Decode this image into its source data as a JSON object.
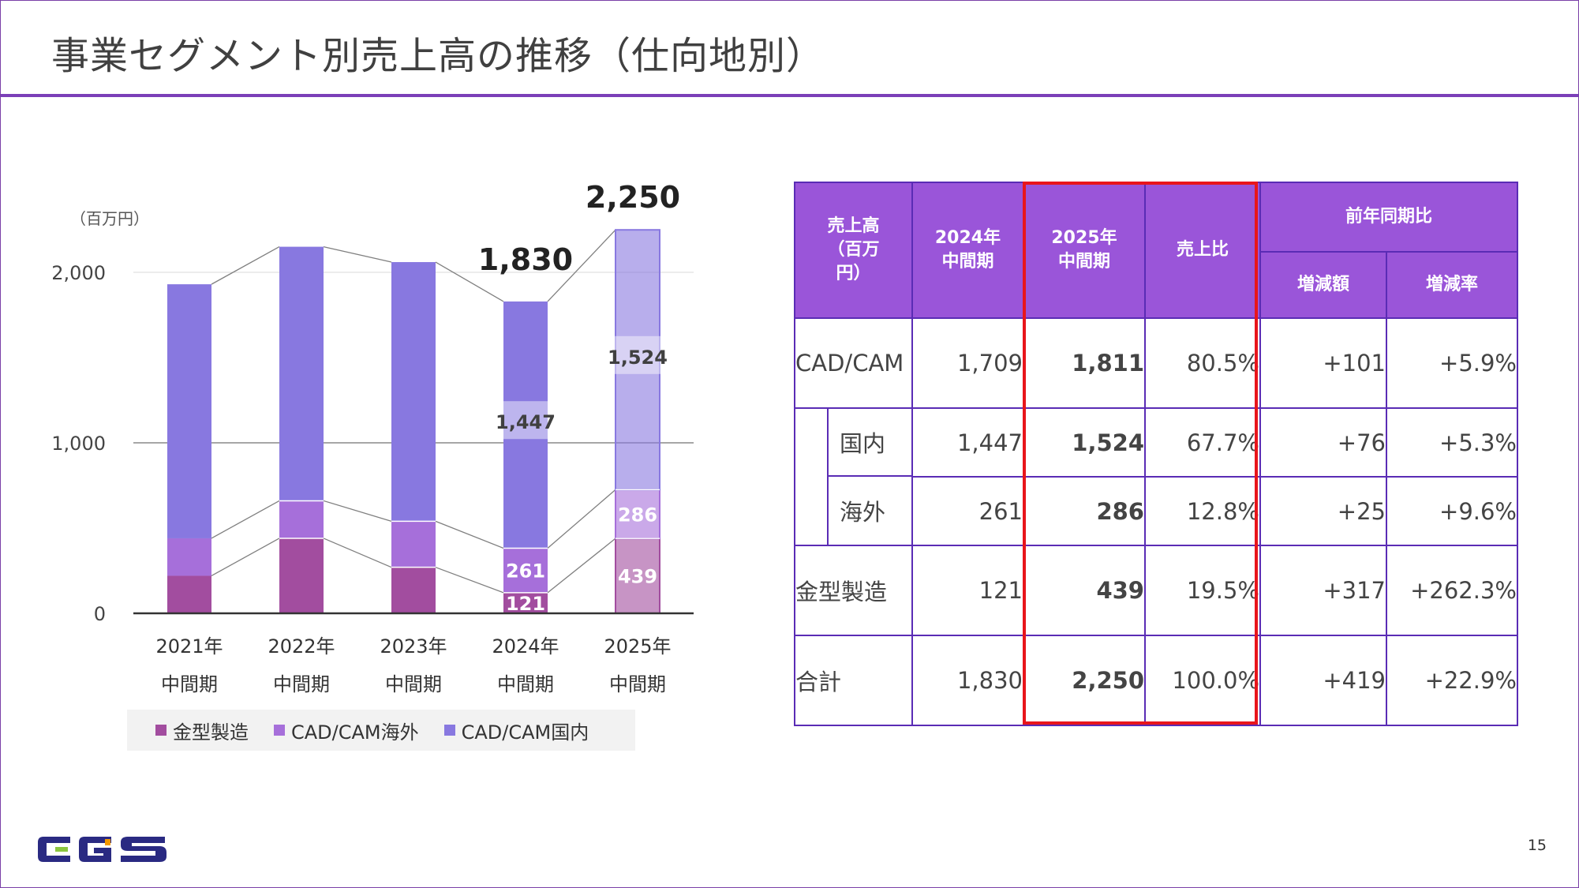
{
  "title": "事業セグメント別売上高の推移（仕向地別）",
  "page_number": "15",
  "logo_text": "CGS",
  "colors": {
    "kanagata": "#a24d9f",
    "cadcam_overseas": "#a66fda",
    "cadcam_domestic": "#8878e0",
    "accent": "#7b3fb8",
    "highlight": "#e8151b"
  },
  "chart_data": {
    "type": "bar",
    "stacked": true,
    "unit_label": "（百万円）",
    "categories": [
      [
        "2021年",
        "中間期"
      ],
      [
        "2022年",
        "中間期"
      ],
      [
        "2023年",
        "中間期"
      ],
      [
        "2024年",
        "中間期"
      ],
      [
        "2025年",
        "中間期"
      ]
    ],
    "series": [
      {
        "name": "金型製造",
        "values": [
          220,
          440,
          270,
          121,
          439
        ],
        "color": "#a24d9f"
      },
      {
        "name": "CAD/CAM海外",
        "values": [
          220,
          220,
          270,
          261,
          286
        ],
        "color": "#a66fda"
      },
      {
        "name": "CAD/CAM国内",
        "values": [
          1490,
          1490,
          1520,
          1447,
          1524
        ],
        "color": "#8878e0"
      }
    ],
    "ylim": [
      0,
      2300
    ],
    "yticks": [
      0,
      1000,
      2000
    ],
    "ytick_labels": [
      "0",
      "1,000",
      "2,000"
    ],
    "total_labels": [
      null,
      null,
      null,
      "1,830",
      "2,250"
    ],
    "segment_labels": [
      [
        null,
        null,
        null
      ],
      [
        null,
        null,
        null
      ],
      [
        null,
        null,
        null
      ],
      [
        "121",
        "261",
        "1,447"
      ],
      [
        "439",
        "286",
        "1,524"
      ]
    ],
    "legend": [
      "金型製造",
      "CAD/CAM海外",
      "CAD/CAM国内"
    ]
  },
  "table": {
    "header": {
      "sales": "売上高\n（百万\n円）",
      "y2024": "2024年\n中間期",
      "y2025": "2025年\n中間期",
      "ratio": "売上比",
      "yoy": "前年同期比",
      "diff": "増減額",
      "rate": "増減率"
    },
    "rows": {
      "cadcam": {
        "label": "CAD/CAM",
        "y2024": "1,709",
        "y2025": "1,811",
        "ratio": "80.5%",
        "diff": "+101",
        "rate": "+5.9%"
      },
      "domestic": {
        "label": "国内",
        "y2024": "1,447",
        "y2025": "1,524",
        "ratio": "67.7%",
        "diff": "+76",
        "rate": "+5.3%"
      },
      "overseas": {
        "label": "海外",
        "y2024": "261",
        "y2025": "286",
        "ratio": "12.8%",
        "diff": "+25",
        "rate": "+9.6%"
      },
      "kanagata": {
        "label": "金型製造",
        "y2024": "121",
        "y2025": "439",
        "ratio": "19.5%",
        "diff": "+317",
        "rate": "+262.3%"
      },
      "total": {
        "label": "合計",
        "y2024": "1,830",
        "y2025": "2,250",
        "ratio": "100.0%",
        "diff": "+419",
        "rate": "+22.9%"
      }
    }
  }
}
